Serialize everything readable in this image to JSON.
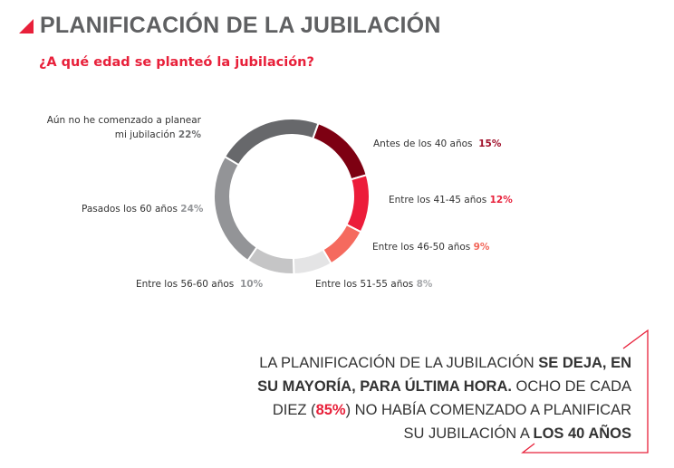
{
  "header": {
    "title": "PLANIFICACIÓN DE LA JUBILACIÓN",
    "subtitle": "¿A qué edad se planteó la jubilación?"
  },
  "chart_data": {
    "type": "pie",
    "donut": true,
    "title": "¿A qué edad se planteó la jubilación?",
    "slices": [
      {
        "label": "Antes de los 40 años",
        "value": 15,
        "value_label": "15%",
        "color": "#7d0012",
        "label_color": "#a0102a"
      },
      {
        "label": "Entre los 41-45 años",
        "value": 12,
        "value_label": "12%",
        "color": "#ec1c3a",
        "label_color": "#e8203a"
      },
      {
        "label": "Entre los 46-50 años",
        "value": 9,
        "value_label": "9%",
        "color": "#f56a5e",
        "label_color": "#f26558"
      },
      {
        "label": "Entre los 51-55 años",
        "value": 8,
        "value_label": "8%",
        "color": "#e4e4e5",
        "label_color": "#a7a9ac"
      },
      {
        "label": "Entre los 56-60 años",
        "value": 10,
        "value_label": "10%",
        "color": "#c5c5c6",
        "label_color": "#939598"
      },
      {
        "label": "Pasados los 60 años",
        "value": 24,
        "value_label": "24%",
        "color": "#939497",
        "label_color": "#939598"
      },
      {
        "label_line1": "Aún no he comenzado a planear",
        "label": "mi jubilación",
        "value": 22,
        "value_label": "22%",
        "color": "#67686b",
        "label_color": "#6d6e70"
      }
    ]
  },
  "callout": {
    "p1": "LA PLANIFICACIÓN DE LA JUBILACIÓN ",
    "b1": "SE DEJA, EN SU MAYORÍA, PARA ÚLTIMA HORA.",
    "p2": " OCHO DE CADA DIEZ (",
    "highlight": "85%",
    "p3": ") NO HABÍA COMENZADO A PLANIFICAR SU JUBILACIÓN A ",
    "b2": "LOS 40 AÑOS",
    "accent": "#e8203a"
  }
}
